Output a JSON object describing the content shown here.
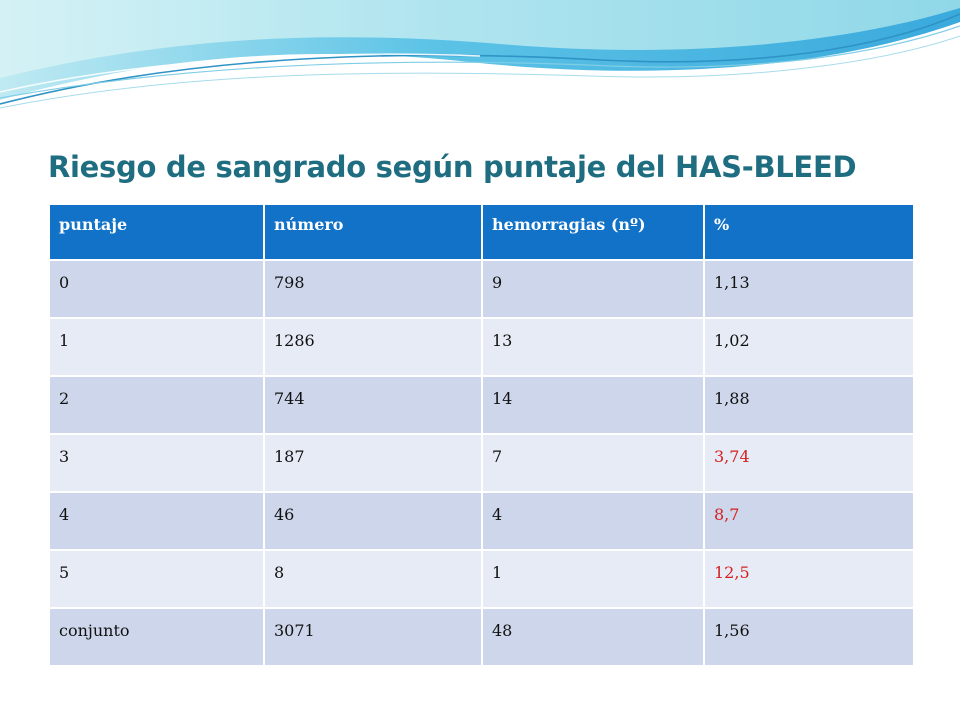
{
  "title": "Riesgo de sangrado según puntaje del HAS-BLEED",
  "colors": {
    "title": "#1f6d80",
    "header_bg": "#1172c8",
    "row_odd": "#cdd6ea",
    "row_even": "#e7ebf6",
    "highlight": "#d42020"
  },
  "table": {
    "headers": [
      "puntaje",
      "número",
      "hemorragias (nº)",
      "%"
    ],
    "rows": [
      [
        "0",
        "798",
        "9",
        "1,13"
      ],
      [
        "1",
        "1286",
        "13",
        "1,02"
      ],
      [
        "2",
        "744",
        "14",
        "1,88"
      ],
      [
        "3",
        "187",
        "7",
        "3,74"
      ],
      [
        "4",
        "46",
        "4",
        "8,7"
      ],
      [
        "5",
        "8",
        "1",
        "12,5"
      ],
      [
        "conjunto",
        "3071",
        "48",
        "1,56"
      ]
    ]
  }
}
